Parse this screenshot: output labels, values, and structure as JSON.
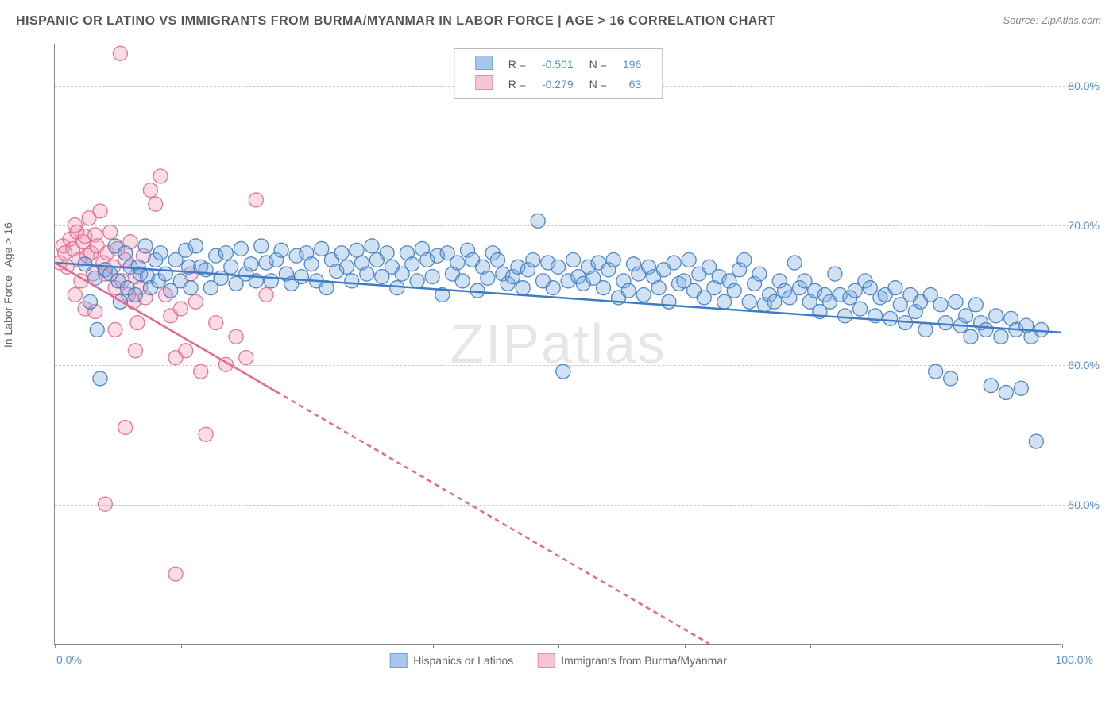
{
  "title": "HISPANIC OR LATINO VS IMMIGRANTS FROM BURMA/MYANMAR IN LABOR FORCE | AGE > 16 CORRELATION CHART",
  "source": "Source: ZipAtlas.com",
  "ylabel": "In Labor Force | Age > 16",
  "watermark": "ZIPatlas",
  "chart": {
    "type": "scatter-with-regression",
    "background_color": "#ffffff",
    "grid_color": "#cccccc",
    "axis_color": "#888888",
    "xlim": [
      0,
      100
    ],
    "ylim": [
      40,
      83
    ],
    "yticks": [
      {
        "v": 50.0,
        "label": "50.0%"
      },
      {
        "v": 60.0,
        "label": "60.0%"
      },
      {
        "v": 70.0,
        "label": "70.0%"
      },
      {
        "v": 80.0,
        "label": "80.0%"
      }
    ],
    "xtick_positions": [
      0,
      12.5,
      25,
      37.5,
      50,
      62.5,
      75,
      87.5,
      100
    ],
    "xtick_labels": {
      "start": "0.0%",
      "end": "100.0%"
    },
    "tick_label_color": "#5b8fd6",
    "axis_label_color": "#666666",
    "marker_radius": 9,
    "marker_opacity": 0.35,
    "marker_stroke_opacity": 0.9,
    "line_width": 2.5
  },
  "top_legend": {
    "rows": [
      {
        "swatch_fill": "#a9c7eb",
        "swatch_border": "#6fa0db",
        "r_label": "R =",
        "r_value": "-0.501",
        "n_label": "N =",
        "n_value": "196"
      },
      {
        "swatch_fill": "#f6c6d4",
        "swatch_border": "#ec8ba8",
        "r_label": "R =",
        "r_value": "-0.279",
        "n_label": "N =",
        "n_value": "63"
      }
    ]
  },
  "bottom_legend": {
    "items": [
      {
        "swatch_fill": "#a9c7eb",
        "swatch_border": "#6fa0db",
        "label": "Hispanics or Latinos"
      },
      {
        "swatch_fill": "#f6c6d4",
        "swatch_border": "#ec8ba8",
        "label": "Immigrants from Burma/Myanmar"
      }
    ]
  },
  "series_blue": {
    "color_fill": "#79a8e0",
    "color_stroke": "#3f7cc4",
    "regression": {
      "x1": 0,
      "y1": 67.3,
      "x2": 100,
      "y2": 62.3,
      "solid_start": 0,
      "solid_end": 100
    },
    "points": [
      [
        3,
        67.2
      ],
      [
        3.5,
        64.5
      ],
      [
        4,
        66.2
      ],
      [
        4.2,
        62.5
      ],
      [
        4.5,
        59
      ],
      [
        5,
        66.8
      ],
      [
        5.5,
        66.5
      ],
      [
        6,
        68.5
      ],
      [
        6.3,
        66
      ],
      [
        6.5,
        64.5
      ],
      [
        7,
        68
      ],
      [
        7.2,
        65.5
      ],
      [
        7.5,
        67
      ],
      [
        8,
        65
      ],
      [
        8.3,
        67
      ],
      [
        8.5,
        66.5
      ],
      [
        9,
        68.5
      ],
      [
        9.2,
        66.3
      ],
      [
        9.5,
        65.5
      ],
      [
        10,
        67.5
      ],
      [
        10.3,
        66
      ],
      [
        10.5,
        68
      ],
      [
        11,
        66.5
      ],
      [
        11.5,
        65.3
      ],
      [
        12,
        67.5
      ],
      [
        12.5,
        66
      ],
      [
        13,
        68.2
      ],
      [
        13.3,
        67
      ],
      [
        13.5,
        65.5
      ],
      [
        14,
        68.5
      ],
      [
        14.5,
        67
      ],
      [
        15,
        66.8
      ],
      [
        15.5,
        65.5
      ],
      [
        16,
        67.8
      ],
      [
        16.5,
        66.2
      ],
      [
        17,
        68
      ],
      [
        17.5,
        67
      ],
      [
        18,
        65.8
      ],
      [
        18.5,
        68.3
      ],
      [
        19,
        66.5
      ],
      [
        19.5,
        67.2
      ],
      [
        20,
        66
      ],
      [
        20.5,
        68.5
      ],
      [
        21,
        67.3
      ],
      [
        21.5,
        66
      ],
      [
        22,
        67.5
      ],
      [
        22.5,
        68.2
      ],
      [
        23,
        66.5
      ],
      [
        23.5,
        65.8
      ],
      [
        24,
        67.8
      ],
      [
        24.5,
        66.3
      ],
      [
        25,
        68
      ],
      [
        25.5,
        67.2
      ],
      [
        26,
        66
      ],
      [
        26.5,
        68.3
      ],
      [
        27,
        65.5
      ],
      [
        27.5,
        67.5
      ],
      [
        28,
        66.7
      ],
      [
        28.5,
        68
      ],
      [
        29,
        67
      ],
      [
        29.5,
        66
      ],
      [
        30,
        68.2
      ],
      [
        30.5,
        67.3
      ],
      [
        31,
        66.5
      ],
      [
        31.5,
        68.5
      ],
      [
        32,
        67.5
      ],
      [
        32.5,
        66.3
      ],
      [
        33,
        68
      ],
      [
        33.5,
        67
      ],
      [
        34,
        65.5
      ],
      [
        34.5,
        66.5
      ],
      [
        35,
        68
      ],
      [
        35.5,
        67.2
      ],
      [
        36,
        66
      ],
      [
        36.5,
        68.3
      ],
      [
        37,
        67.5
      ],
      [
        37.5,
        66.3
      ],
      [
        38,
        67.8
      ],
      [
        38.5,
        65
      ],
      [
        39,
        68
      ],
      [
        39.5,
        66.5
      ],
      [
        40,
        67.3
      ],
      [
        40.5,
        66
      ],
      [
        41,
        68.2
      ],
      [
        41.5,
        67.5
      ],
      [
        42,
        65.3
      ],
      [
        42.5,
        67
      ],
      [
        43,
        66.2
      ],
      [
        43.5,
        68
      ],
      [
        44,
        67.5
      ],
      [
        44.5,
        66.5
      ],
      [
        45,
        65.8
      ],
      [
        45.5,
        66.3
      ],
      [
        46,
        67
      ],
      [
        46.5,
        65.5
      ],
      [
        47,
        66.8
      ],
      [
        47.5,
        67.5
      ],
      [
        48,
        70.3
      ],
      [
        48.5,
        66
      ],
      [
        49,
        67.3
      ],
      [
        49.5,
        65.5
      ],
      [
        50,
        67
      ],
      [
        50.5,
        59.5
      ],
      [
        51,
        66
      ],
      [
        51.5,
        67.5
      ],
      [
        52,
        66.3
      ],
      [
        52.5,
        65.8
      ],
      [
        53,
        67
      ],
      [
        53.5,
        66.2
      ],
      [
        54,
        67.3
      ],
      [
        54.5,
        65.5
      ],
      [
        55,
        66.8
      ],
      [
        55.5,
        67.5
      ],
      [
        56,
        64.8
      ],
      [
        56.5,
        66
      ],
      [
        57,
        65.3
      ],
      [
        57.5,
        67.2
      ],
      [
        58,
        66.5
      ],
      [
        58.5,
        65
      ],
      [
        59,
        67
      ],
      [
        59.5,
        66.3
      ],
      [
        60,
        65.5
      ],
      [
        60.5,
        66.8
      ],
      [
        61,
        64.5
      ],
      [
        61.5,
        67.3
      ],
      [
        62,
        65.8
      ],
      [
        62.5,
        66
      ],
      [
        63,
        67.5
      ],
      [
        63.5,
        65.3
      ],
      [
        64,
        66.5
      ],
      [
        64.5,
        64.8
      ],
      [
        65,
        67
      ],
      [
        65.5,
        65.5
      ],
      [
        66,
        66.3
      ],
      [
        66.5,
        64.5
      ],
      [
        67,
        66
      ],
      [
        67.5,
        65.3
      ],
      [
        68,
        66.8
      ],
      [
        68.5,
        67.5
      ],
      [
        69,
        64.5
      ],
      [
        69.5,
        65.8
      ],
      [
        70,
        66.5
      ],
      [
        70.5,
        64.3
      ],
      [
        71,
        65
      ],
      [
        71.5,
        64.5
      ],
      [
        72,
        66
      ],
      [
        72.5,
        65.3
      ],
      [
        73,
        64.8
      ],
      [
        73.5,
        67.3
      ],
      [
        74,
        65.5
      ],
      [
        74.5,
        66
      ],
      [
        75,
        64.5
      ],
      [
        75.5,
        65.3
      ],
      [
        76,
        63.8
      ],
      [
        76.5,
        65
      ],
      [
        77,
        64.5
      ],
      [
        77.5,
        66.5
      ],
      [
        78,
        65
      ],
      [
        78.5,
        63.5
      ],
      [
        79,
        64.8
      ],
      [
        79.5,
        65.3
      ],
      [
        80,
        64
      ],
      [
        80.5,
        66
      ],
      [
        81,
        65.5
      ],
      [
        81.5,
        63.5
      ],
      [
        82,
        64.8
      ],
      [
        82.5,
        65
      ],
      [
        83,
        63.3
      ],
      [
        83.5,
        65.5
      ],
      [
        84,
        64.3
      ],
      [
        84.5,
        63
      ],
      [
        85,
        65
      ],
      [
        85.5,
        63.8
      ],
      [
        86,
        64.5
      ],
      [
        86.5,
        62.5
      ],
      [
        87,
        65
      ],
      [
        87.5,
        59.5
      ],
      [
        88,
        64.3
      ],
      [
        88.5,
        63
      ],
      [
        89,
        59
      ],
      [
        89.5,
        64.5
      ],
      [
        90,
        62.8
      ],
      [
        90.5,
        63.5
      ],
      [
        91,
        62
      ],
      [
        91.5,
        64.3
      ],
      [
        92,
        63
      ],
      [
        92.5,
        62.5
      ],
      [
        93,
        58.5
      ],
      [
        93.5,
        63.5
      ],
      [
        94,
        62
      ],
      [
        94.5,
        58
      ],
      [
        95,
        63.3
      ],
      [
        95.5,
        62.5
      ],
      [
        96,
        58.3
      ],
      [
        96.5,
        62.8
      ],
      [
        97,
        62
      ],
      [
        97.5,
        54.5
      ],
      [
        98,
        62.5
      ]
    ]
  },
  "series_pink": {
    "color_fill": "#f29cb5",
    "color_stroke": "#e86690",
    "regression": {
      "x1": 0,
      "y1": 67.3,
      "x2": 65,
      "y2": 40,
      "solid_start": 0,
      "solid_end": 22
    },
    "points": [
      [
        0.5,
        67.3
      ],
      [
        0.8,
        68.5
      ],
      [
        1,
        68
      ],
      [
        1.2,
        67
      ],
      [
        1.5,
        69
      ],
      [
        1.8,
        68.3
      ],
      [
        2,
        70
      ],
      [
        2.2,
        69.5
      ],
      [
        2.4,
        67.5
      ],
      [
        2.6,
        66
      ],
      [
        2.8,
        68.8
      ],
      [
        3,
        69.2
      ],
      [
        3.2,
        67.8
      ],
      [
        3.4,
        70.5
      ],
      [
        3.6,
        68
      ],
      [
        3.8,
        66.5
      ],
      [
        4,
        69.3
      ],
      [
        4.2,
        68.5
      ],
      [
        4.5,
        71
      ],
      [
        4.8,
        67.3
      ],
      [
        5,
        66.5
      ],
      [
        5.2,
        68
      ],
      [
        5.5,
        69.5
      ],
      [
        5.8,
        67
      ],
      [
        6,
        65.5
      ],
      [
        6.2,
        68.3
      ],
      [
        6.5,
        82.3
      ],
      [
        6.7,
        66
      ],
      [
        7,
        67.5
      ],
      [
        7.3,
        65
      ],
      [
        7.5,
        68.8
      ],
      [
        7.8,
        64.5
      ],
      [
        8,
        66.3
      ],
      [
        8.2,
        63
      ],
      [
        8.5,
        65.5
      ],
      [
        8.8,
        67.8
      ],
      [
        9,
        64.8
      ],
      [
        9.5,
        72.5
      ],
      [
        10,
        71.5
      ],
      [
        10.5,
        73.5
      ],
      [
        11,
        65
      ],
      [
        11.5,
        63.5
      ],
      [
        12,
        60.5
      ],
      [
        12.5,
        64
      ],
      [
        13,
        61
      ],
      [
        13.5,
        66.5
      ],
      [
        14,
        64.5
      ],
      [
        14.5,
        59.5
      ],
      [
        15,
        55
      ],
      [
        16,
        63
      ],
      [
        17,
        60
      ],
      [
        18,
        62
      ],
      [
        19,
        60.5
      ],
      [
        20,
        71.8
      ],
      [
        21,
        65
      ],
      [
        5,
        50
      ],
      [
        7,
        55.5
      ],
      [
        2,
        65
      ],
      [
        12,
        45
      ],
      [
        3,
        64
      ],
      [
        4,
        63.8
      ],
      [
        6,
        62.5
      ],
      [
        8,
        61
      ]
    ]
  }
}
